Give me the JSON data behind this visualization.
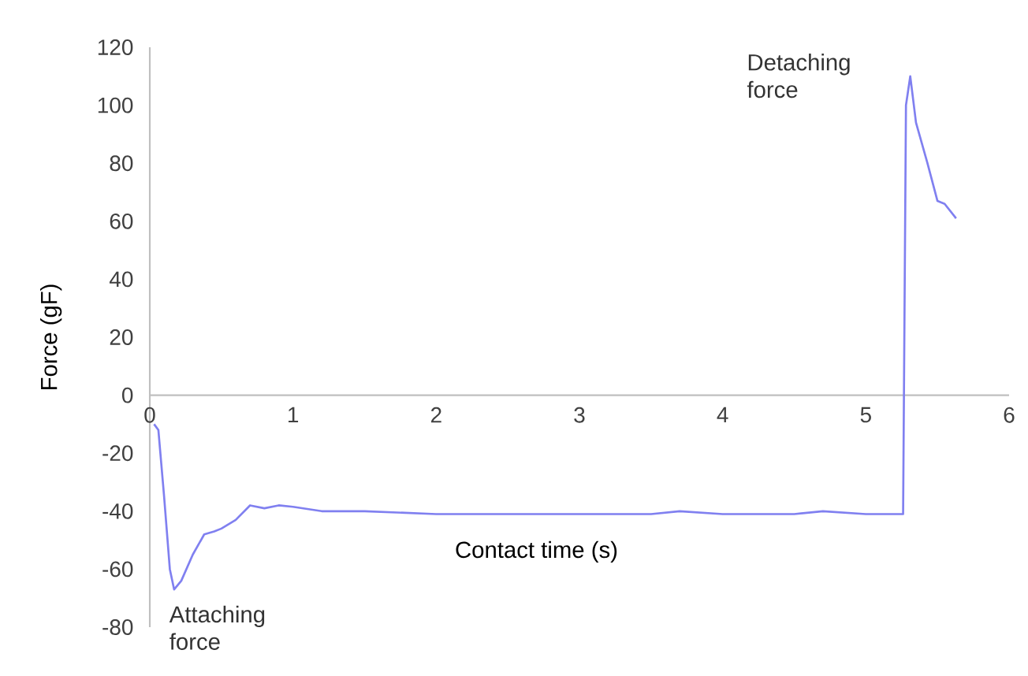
{
  "chart_data": {
    "type": "line",
    "xlabel": "Contact time (s)",
    "ylabel": "Force (gF)",
    "x": [
      0.03,
      0.06,
      0.1,
      0.14,
      0.17,
      0.22,
      0.3,
      0.38,
      0.45,
      0.5,
      0.6,
      0.7,
      0.8,
      0.9,
      1.0,
      1.2,
      1.5,
      2.0,
      2.5,
      3.0,
      3.5,
      3.7,
      4.0,
      4.5,
      4.7,
      5.0,
      5.2,
      5.26,
      5.28,
      5.31,
      5.35,
      5.43,
      5.5,
      5.55,
      5.63
    ],
    "series": [
      {
        "color": "#8080f0",
        "values": [
          -10,
          -12,
          -35,
          -60,
          -67,
          -64,
          -55,
          -48,
          -47,
          -46,
          -43,
          -38,
          -39,
          -38,
          -38.5,
          -40,
          -40,
          -41,
          -41,
          -41,
          -41,
          -40,
          -41,
          -41,
          -40,
          -41,
          -41,
          -41,
          100,
          110,
          94,
          80,
          67,
          66,
          61
        ]
      }
    ],
    "xlim": [
      0,
      6
    ],
    "xticks": [
      0,
      1,
      2,
      3,
      4,
      5,
      6
    ],
    "ylim": [
      -80,
      120
    ],
    "yticks": [
      -80,
      -60,
      -40,
      -20,
      0,
      20,
      40,
      60,
      80,
      100,
      120
    ],
    "annotations": [
      {
        "text": "Attaching force",
        "x": 0.17,
        "y": -67
      },
      {
        "text": "Detaching force",
        "x": 5.31,
        "y": 110
      }
    ]
  }
}
